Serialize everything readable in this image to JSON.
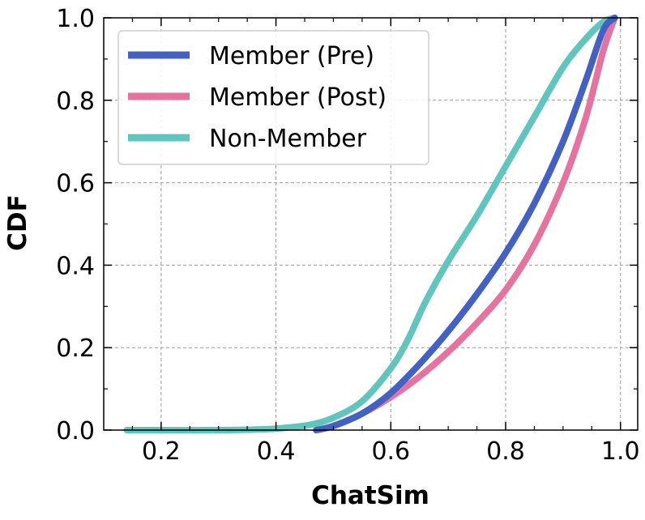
{
  "chart_data": {
    "type": "line",
    "title": "",
    "xlabel": "ChatSim",
    "ylabel": "CDF",
    "xlim": [
      0.1,
      1.03
    ],
    "ylim": [
      0.0,
      1.0
    ],
    "xticks": [
      0.2,
      0.4,
      0.6,
      0.8,
      1.0
    ],
    "yticks": [
      0.0,
      0.2,
      0.4,
      0.6,
      0.8,
      1.0
    ],
    "xtick_labels": [
      "0.2",
      "0.4",
      "0.6",
      "0.8",
      "1.0"
    ],
    "ytick_labels": [
      "0.0",
      "0.2",
      "0.4",
      "0.6",
      "0.8",
      "1.0"
    ],
    "grid": true,
    "legend_position": "top-left",
    "series": [
      {
        "name": "Member (Pre)",
        "color": "#4361c2",
        "x": [
          0.47,
          0.5,
          0.55,
          0.6,
          0.65,
          0.7,
          0.75,
          0.8,
          0.85,
          0.9,
          0.94,
          0.97,
          0.99
        ],
        "y": [
          0.0,
          0.01,
          0.04,
          0.09,
          0.16,
          0.24,
          0.33,
          0.43,
          0.55,
          0.7,
          0.85,
          0.97,
          1.0
        ]
      },
      {
        "name": "Member (Post)",
        "color": "#e5729f",
        "x": [
          0.47,
          0.5,
          0.55,
          0.6,
          0.65,
          0.7,
          0.75,
          0.8,
          0.85,
          0.9,
          0.94,
          0.97,
          0.99
        ],
        "y": [
          0.0,
          0.01,
          0.04,
          0.08,
          0.13,
          0.19,
          0.26,
          0.34,
          0.45,
          0.6,
          0.76,
          0.92,
          1.0
        ]
      },
      {
        "name": "Non-Member",
        "color": "#60c6bd",
        "x": [
          0.14,
          0.2,
          0.3,
          0.38,
          0.42,
          0.46,
          0.5,
          0.55,
          0.6,
          0.63,
          0.66,
          0.7,
          0.75,
          0.8,
          0.85,
          0.9,
          0.94,
          0.97,
          0.99
        ],
        "y": [
          0.0,
          0.0,
          0.0,
          0.002,
          0.006,
          0.013,
          0.03,
          0.07,
          0.15,
          0.22,
          0.31,
          0.41,
          0.52,
          0.64,
          0.76,
          0.88,
          0.95,
          0.99,
          1.0
        ]
      }
    ]
  }
}
